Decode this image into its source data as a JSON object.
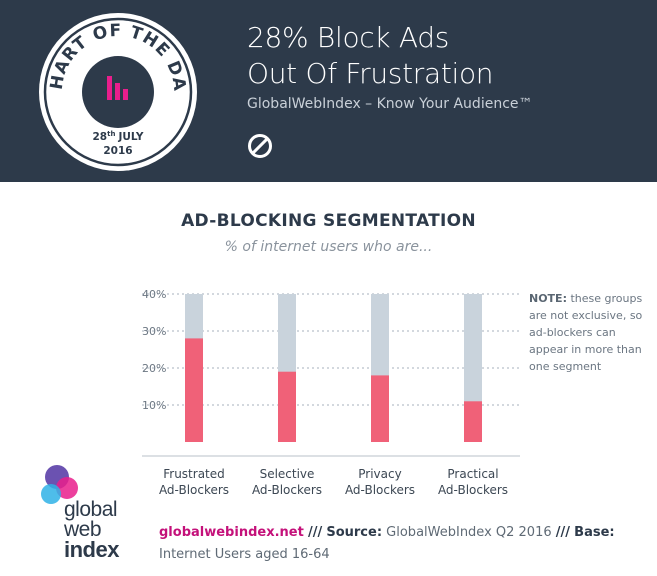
{
  "header": {
    "badge_title": "CHART OF THE DAY",
    "badge_date_day": "28",
    "badge_date_suffix": "th",
    "badge_date_month": "JULY",
    "badge_date_year": "2016",
    "headline_line1": "28% Block Ads",
    "headline_line2": "Out Of Frustration",
    "tagline": "GlobalWebIndex – Know Your Audience™",
    "icon": "block-icon"
  },
  "chart_heading": {
    "title": "AD-BLOCKING SEGMENTATION",
    "subtitle": "% of internet users who are..."
  },
  "note": {
    "label": "NOTE:",
    "text": "these groups are not exclusive, so ad-blockers can appear in more than one segment"
  },
  "chart_data": {
    "type": "bar",
    "title": "AD-BLOCKING SEGMENTATION",
    "subtitle": "% of internet users who are...",
    "categories": [
      [
        "Frustrated",
        "Ad-Blockers"
      ],
      [
        "Selective",
        "Ad-Blockers"
      ],
      [
        "Privacy",
        "Ad-Blockers"
      ],
      [
        "Practical",
        "Ad-Blockers"
      ]
    ],
    "values": [
      28,
      19,
      18,
      11
    ],
    "ylim": [
      0,
      40
    ],
    "yticks": [
      10,
      20,
      30,
      40
    ],
    "ytick_labels": [
      "10%",
      "20%",
      "30%",
      "40%"
    ],
    "grid": true,
    "colors": {
      "bar": "#f06178",
      "track": "#c9d3dc",
      "grid": "#b9c1c9"
    }
  },
  "footer": {
    "logo_line1": "global",
    "logo_line2": "web",
    "logo_line3": "index",
    "site": "globalwebindex.net",
    "sep1": "///",
    "source_label": "Source:",
    "source_text": "GlobalWebIndex Q2 2016",
    "sep2": "///",
    "base_label": "Base:",
    "base_text": "Internet Users aged 16-64"
  },
  "colors": {
    "header_bg": "#2d3a4a",
    "accent_pink": "#e91e8c",
    "bar": "#f06178",
    "track": "#c9d3dc"
  }
}
